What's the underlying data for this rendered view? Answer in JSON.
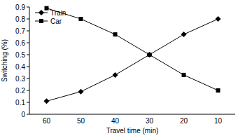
{
  "chart_data": {
    "type": "line",
    "x_label": "Travel time (min)",
    "y_label": "Switching (%)",
    "categories": [
      "60",
      "50",
      "40",
      "30",
      "20",
      "10"
    ],
    "series": [
      {
        "name": "Train",
        "color": "#000000",
        "marker": "diamond",
        "values": [
          0.11,
          0.19,
          0.33,
          0.5,
          0.67,
          0.8
        ]
      },
      {
        "name": "Car",
        "color": "#000000",
        "marker": "square",
        "values": [
          0.89,
          0.8,
          0.67,
          0.5,
          0.33,
          0.2
        ]
      }
    ],
    "ylim": [
      0,
      0.9
    ],
    "yticks": [
      0,
      0.1,
      0.2,
      0.3,
      0.4,
      0.5,
      0.6,
      0.7,
      0.8,
      0.9
    ],
    "grid": false,
    "legend": "upper left"
  }
}
